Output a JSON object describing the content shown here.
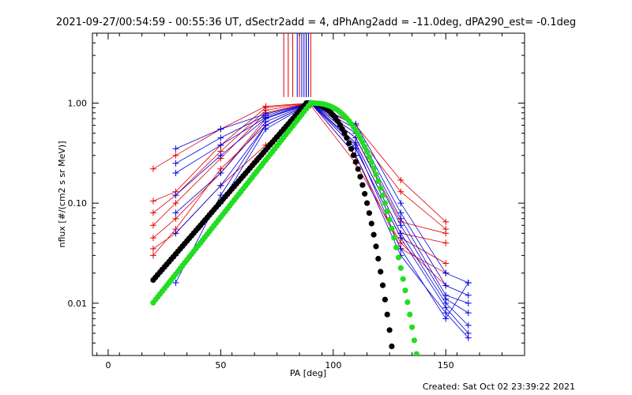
{
  "title": "2021-09-27/00:54:59 - 00:55:36 UT, dSectr2add = 4, dPhAng2add = -11.0deg, dPA290_est= -0.1deg",
  "footer": "Created: Sat Oct 02 23:39:22 2021",
  "chart_data": {
    "type": "scatter",
    "xlabel": "PA [deg]",
    "ylabel": "nflux [#/(cm2 s sr MeV)]",
    "xlim": [
      -7,
      185
    ],
    "ylim": [
      0.003,
      5
    ],
    "yscale": "log",
    "x_ticks": [
      0,
      50,
      100,
      150
    ],
    "x_tick_labels": [
      "0",
      "50",
      "100",
      "150"
    ],
    "y_ticks": [
      0.01,
      0.1,
      1.0
    ],
    "y_tick_labels": [
      "0.01",
      "0.10",
      "1.00"
    ],
    "colors": {
      "red": "#e00000",
      "blue": "#0000e0",
      "black": "#000000",
      "green": "#22dd22"
    },
    "vertical_markers": {
      "red": [
        78,
        80,
        82,
        85,
        88,
        90
      ],
      "blue": [
        84,
        86,
        87,
        88,
        89
      ],
      "y_from": 1.15,
      "y_to": 5
    },
    "series": [
      {
        "color": "red",
        "x": [
          20,
          30,
          50,
          70,
          90,
          110,
          130,
          150
        ],
        "y": [
          0.22,
          0.3,
          0.55,
          0.93,
          1.0,
          0.6,
          0.17,
          0.065
        ]
      },
      {
        "color": "red",
        "x": [
          20,
          30,
          50,
          70,
          90,
          110,
          130,
          150
        ],
        "y": [
          0.105,
          0.13,
          0.38,
          0.9,
          1.0,
          0.5,
          0.13,
          0.055
        ]
      },
      {
        "color": "red",
        "x": [
          20,
          30,
          50,
          70,
          90,
          110,
          130,
          150
        ],
        "y": [
          0.08,
          0.12,
          0.33,
          0.85,
          1.0,
          0.45,
          0.065,
          0.05
        ]
      },
      {
        "color": "red",
        "x": [
          20,
          30,
          50,
          70,
          90,
          110,
          130,
          150
        ],
        "y": [
          0.06,
          0.1,
          0.28,
          0.8,
          1.0,
          0.4,
          0.05,
          0.04
        ]
      },
      {
        "color": "red",
        "x": [
          20,
          30,
          50,
          70,
          90,
          110,
          130,
          150
        ],
        "y": [
          0.045,
          0.07,
          0.2,
          0.7,
          1.0,
          0.35,
          0.045,
          0.025
        ]
      },
      {
        "color": "red",
        "x": [
          20,
          30,
          50,
          70,
          90,
          110,
          130,
          150
        ],
        "y": [
          0.035,
          0.05,
          0.15,
          0.38,
          0.95,
          0.25,
          0.04,
          0.015
        ]
      },
      {
        "color": "red",
        "x": [
          20,
          30,
          50,
          70,
          90,
          110,
          130,
          150
        ],
        "y": [
          0.03,
          0.055,
          0.22,
          0.6,
          1.0,
          0.3,
          0.035,
          0.02
        ]
      },
      {
        "color": "blue",
        "x": [
          30,
          50,
          70,
          90,
          110,
          130,
          150,
          160
        ],
        "y": [
          0.35,
          0.55,
          0.78,
          1.0,
          0.62,
          0.1,
          0.02,
          0.016
        ]
      },
      {
        "color": "blue",
        "x": [
          30,
          50,
          70,
          90,
          110,
          130,
          150,
          160
        ],
        "y": [
          0.25,
          0.45,
          0.75,
          1.0,
          0.55,
          0.08,
          0.015,
          0.012
        ]
      },
      {
        "color": "blue",
        "x": [
          30,
          50,
          70,
          90,
          110,
          130,
          150,
          160
        ],
        "y": [
          0.2,
          0.38,
          0.72,
          1.0,
          0.5,
          0.07,
          0.012,
          0.01
        ]
      },
      {
        "color": "blue",
        "x": [
          30,
          50,
          70,
          90,
          110,
          130,
          150,
          160
        ],
        "y": [
          0.12,
          0.3,
          0.7,
          1.0,
          0.45,
          0.06,
          0.011,
          0.008
        ]
      },
      {
        "color": "blue",
        "x": [
          30,
          50,
          70,
          90,
          110,
          130,
          150,
          160
        ],
        "y": [
          0.08,
          0.2,
          0.65,
          1.0,
          0.4,
          0.05,
          0.01,
          0.006
        ]
      },
      {
        "color": "blue",
        "x": [
          30,
          50,
          70,
          90,
          110,
          130,
          150,
          160
        ],
        "y": [
          0.05,
          0.15,
          0.6,
          1.0,
          0.35,
          0.045,
          0.009,
          0.005
        ]
      },
      {
        "color": "blue",
        "x": [
          30,
          50,
          70,
          90,
          110,
          130,
          150,
          160
        ],
        "y": [
          0.03,
          0.1,
          0.55,
          1.0,
          0.3,
          0.03,
          0.008,
          0.0045
        ]
      },
      {
        "color": "blue",
        "x": [
          30,
          50,
          70,
          90,
          110,
          130,
          150,
          160
        ],
        "y": [
          0.016,
          0.12,
          0.6,
          1.0,
          0.38,
          0.035,
          0.007,
          0.016
        ]
      }
    ],
    "model_curves": [
      {
        "color": "black",
        "from": 20,
        "to": 150,
        "peak_x": 88,
        "left_slope": 0.026,
        "right_sigma": 27
      },
      {
        "color": "green",
        "from": 20,
        "to": 150,
        "peak_x": 90,
        "left_slope": 0.0285,
        "right_sigma": 33
      }
    ]
  }
}
